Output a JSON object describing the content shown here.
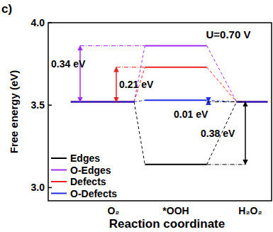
{
  "chart_data": {
    "type": "line",
    "panel_label": "c)",
    "x_label": "Reaction coordinate",
    "y_label": "Free energy (eV)",
    "categories": [
      "O₂",
      "*OOH",
      "H₂O₂"
    ],
    "series": [
      {
        "name": "Edges",
        "color": "#000000",
        "values": [
          3.52,
          3.14,
          3.52
        ]
      },
      {
        "name": "O-Edges",
        "color": "#a12cf0",
        "values": [
          3.52,
          3.86,
          3.52
        ]
      },
      {
        "name": "Defects",
        "color": "#e8201f",
        "values": [
          3.52,
          3.73,
          3.52
        ]
      },
      {
        "name": "O-Defects",
        "color": "#1f2ee0",
        "values": [
          3.52,
          3.53,
          3.52
        ]
      }
    ],
    "ylim": [
      2.92,
      4.0
    ],
    "yticks": [
      {
        "value": 3.0,
        "label": "3.0"
      },
      {
        "value": 3.5,
        "label": "3.5"
      },
      {
        "value": 4.0,
        "label": "4.0"
      }
    ],
    "legend": "lower left",
    "line_style": "solid",
    "annotations": [
      {
        "text": "U=0.70 V"
      },
      {
        "text": "0.34 eV",
        "series": "O-Edges"
      },
      {
        "text": "0.21 eV",
        "series": "Defects"
      },
      {
        "text": "0.01 eV",
        "series": "O-Defects"
      },
      {
        "text": "0.38 eV",
        "series": "Edges"
      }
    ]
  }
}
